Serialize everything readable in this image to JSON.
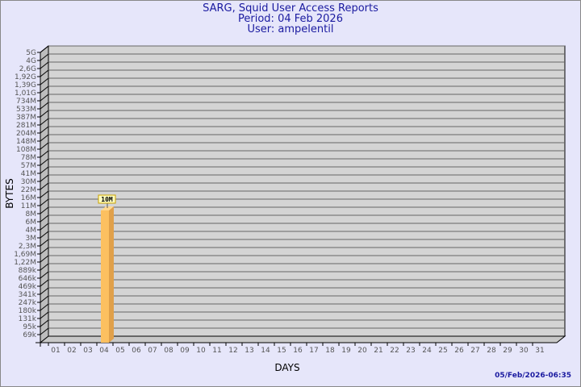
{
  "chart_data": {
    "type": "bar",
    "title": "SARG, Squid User Access Reports",
    "subtitle_period": "Period: 04 Feb 2026",
    "subtitle_user": "User: ampelentil",
    "xlabel": "DAYS",
    "ylabel": "BYTES",
    "y_scale": "log",
    "grid": true,
    "categories": [
      "01",
      "02",
      "03",
      "04",
      "05",
      "06",
      "07",
      "08",
      "09",
      "10",
      "11",
      "12",
      "13",
      "14",
      "15",
      "16",
      "17",
      "18",
      "19",
      "20",
      "21",
      "22",
      "23",
      "24",
      "25",
      "26",
      "27",
      "28",
      "29",
      "30",
      "31"
    ],
    "y_ticks": [
      "5G",
      "4G",
      "2,6G",
      "1,92G",
      "1,39G",
      "1,01G",
      "734M",
      "533M",
      "387M",
      "281M",
      "204M",
      "148M",
      "108M",
      "78M",
      "57M",
      "41M",
      "30M",
      "22M",
      "16M",
      "11M",
      "8M",
      "6M",
      "4M",
      "3M",
      "2,3M",
      "1,69M",
      "1,22M",
      "889k",
      "646k",
      "469k",
      "341k",
      "247k",
      "180k",
      "131k",
      "95k",
      "69k"
    ],
    "y_tick_values": [
      5000000000.0,
      4000000000.0,
      2600000000.0,
      1920000000.0,
      1390000000.0,
      1010000000.0,
      734000000.0,
      533000000.0,
      387000000.0,
      281000000.0,
      204000000.0,
      148000000.0,
      108000000.0,
      78000000.0,
      57000000.0,
      41000000.0,
      30000000.0,
      22000000.0,
      16000000.0,
      11000000.0,
      8000000.0,
      6000000.0,
      4000000.0,
      3000000.0,
      2300000.0,
      1690000.0,
      1220000.0,
      889000.0,
      646000.0,
      469000.0,
      341000.0,
      247000.0,
      180000.0,
      131000.0,
      95000.0,
      69000.0
    ],
    "bars": [
      {
        "day": "04",
        "value": 10000000,
        "label": "10M"
      }
    ],
    "colors": {
      "bar": "#fcc060",
      "bar_side": "#e0a04a",
      "plot_bg": "#d4d4d4",
      "page_bg": "#e6e6fa",
      "title": "#1a1aa0"
    }
  },
  "timestamp": "05/Feb/2026-06:35"
}
